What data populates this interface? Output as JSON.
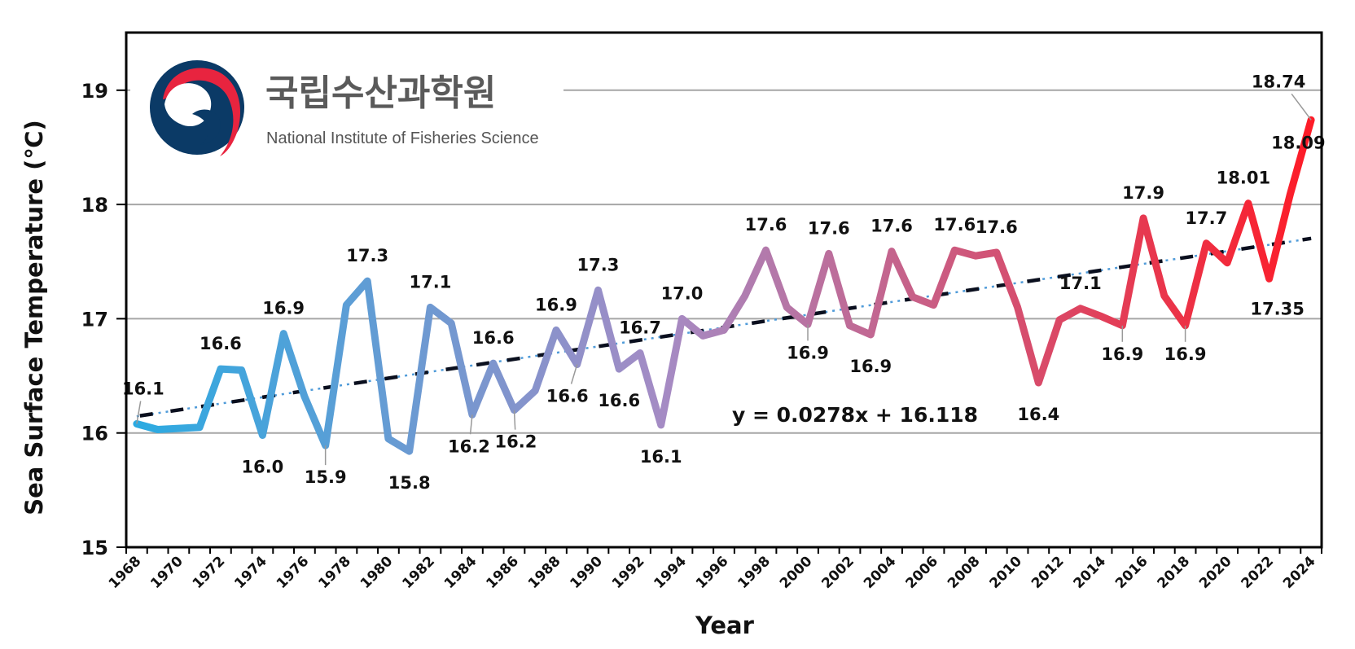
{
  "chart_data": {
    "type": "line",
    "title": "",
    "xlabel": "Year",
    "ylabel": "Sea Surface Temperature (℃)",
    "ylim": [
      15,
      19.4
    ],
    "yticks": [
      15,
      16,
      17,
      18,
      19
    ],
    "grid": true,
    "x": [
      1968,
      1969,
      1970,
      1971,
      1972,
      1973,
      1974,
      1975,
      1976,
      1977,
      1978,
      1979,
      1980,
      1981,
      1982,
      1983,
      1984,
      1985,
      1986,
      1987,
      1988,
      1989,
      1990,
      1991,
      1992,
      1993,
      1994,
      1995,
      1996,
      1997,
      1998,
      1999,
      2000,
      2001,
      2002,
      2003,
      2004,
      2005,
      2006,
      2007,
      2008,
      2009,
      2010,
      2011,
      2012,
      2013,
      2014,
      2015,
      2016,
      2017,
      2018,
      2019,
      2020,
      2021,
      2022,
      2023,
      2024
    ],
    "xtick_labels": [
      "1968",
      "1970",
      "1972",
      "1974",
      "1976",
      "1978",
      "1980",
      "1982",
      "1984",
      "1986",
      "1988",
      "1990",
      "1992",
      "1994",
      "1996",
      "1998",
      "2000",
      "2002",
      "2004",
      "2006",
      "2008",
      "2010",
      "2012",
      "2014",
      "2016",
      "2018",
      "2020",
      "2022",
      "2024"
    ],
    "series": [
      {
        "name": "Sea Surface Temperature",
        "color_start": "#29ABE2",
        "color_mid": "#A58BC4",
        "color_end": "#FF1A25",
        "values": [
          16.08,
          16.03,
          16.04,
          16.05,
          16.56,
          16.55,
          15.98,
          16.87,
          16.32,
          15.89,
          17.12,
          17.33,
          15.95,
          15.84,
          17.1,
          16.96,
          16.16,
          16.61,
          16.2,
          16.37,
          16.9,
          16.6,
          17.25,
          16.56,
          16.7,
          16.07,
          17.0,
          16.85,
          16.9,
          17.2,
          17.6,
          17.1,
          16.95,
          17.57,
          16.94,
          16.86,
          17.59,
          17.19,
          17.12,
          17.6,
          17.55,
          17.58,
          17.1,
          16.44,
          16.99,
          17.09,
          17.02,
          16.94,
          17.88,
          17.2,
          16.94,
          17.66,
          17.49,
          18.01,
          17.35,
          18.09,
          18.74
        ]
      }
    ],
    "data_labels": [
      {
        "year": 1968,
        "text": "16.1",
        "pos": "above"
      },
      {
        "year": 1972,
        "text": "16.6",
        "pos": "above"
      },
      {
        "year": 1974,
        "text": "16.0",
        "pos": "below"
      },
      {
        "year": 1975,
        "text": "16.9",
        "pos": "above"
      },
      {
        "year": 1977,
        "text": "15.9",
        "pos": "below"
      },
      {
        "year": 1979,
        "text": "17.3",
        "pos": "above"
      },
      {
        "year": 1981,
        "text": "15.8",
        "pos": "below"
      },
      {
        "year": 1982,
        "text": "17.1",
        "pos": "above"
      },
      {
        "year": 1984,
        "text": "16.2",
        "pos": "below"
      },
      {
        "year": 1985,
        "text": "16.6",
        "pos": "above"
      },
      {
        "year": 1986,
        "text": "16.2",
        "pos": "below"
      },
      {
        "year": 1988,
        "text": "16.9",
        "pos": "above"
      },
      {
        "year": 1989,
        "text": "16.6",
        "pos": "below"
      },
      {
        "year": 1990,
        "text": "17.3",
        "pos": "above"
      },
      {
        "year": 1991,
        "text": "16.6",
        "pos": "below"
      },
      {
        "year": 1992,
        "text": "16.7",
        "pos": "above"
      },
      {
        "year": 1993,
        "text": "16.1",
        "pos": "below"
      },
      {
        "year": 1994,
        "text": "17.0",
        "pos": "above"
      },
      {
        "year": 1998,
        "text": "17.6",
        "pos": "above"
      },
      {
        "year": 2000,
        "text": "16.9",
        "pos": "below"
      },
      {
        "year": 2001,
        "text": "17.6",
        "pos": "above"
      },
      {
        "year": 2003,
        "text": "16.9",
        "pos": "below"
      },
      {
        "year": 2004,
        "text": "17.6",
        "pos": "above"
      },
      {
        "year": 2007,
        "text": "17.6",
        "pos": "above"
      },
      {
        "year": 2009,
        "text": "17.6",
        "pos": "above"
      },
      {
        "year": 2011,
        "text": "16.4",
        "pos": "below"
      },
      {
        "year": 2013,
        "text": "17.1",
        "pos": "above"
      },
      {
        "year": 2015,
        "text": "16.9",
        "pos": "below"
      },
      {
        "year": 2016,
        "text": "17.9",
        "pos": "above"
      },
      {
        "year": 2018,
        "text": "16.9",
        "pos": "below"
      },
      {
        "year": 2019,
        "text": "17.7",
        "pos": "above"
      },
      {
        "year": 2021,
        "text": "18.01",
        "pos": "above"
      },
      {
        "year": 2022,
        "text": "17.35",
        "pos": "below"
      },
      {
        "year": 2023,
        "text": "18.09",
        "pos": "above"
      },
      {
        "year": 2024,
        "text": "18.74",
        "pos": "above"
      }
    ],
    "trendline": {
      "slope": 0.0278,
      "intercept": 16.118,
      "equation": "y = 0.0278x + 16.118",
      "style": "dash-dot"
    }
  },
  "logo": {
    "name_ko": "국립수산과학원",
    "name_en": "National Institute of Fisheries Science",
    "colors": {
      "navy": "#0B3A66",
      "red": "#E8243F"
    }
  }
}
